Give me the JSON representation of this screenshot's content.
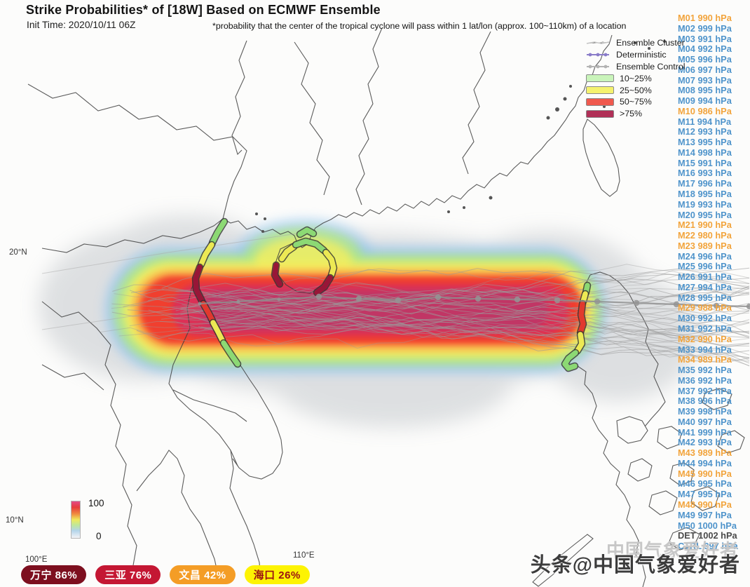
{
  "title": "Strike Probabilities* of [18W] Based on ECMWF Ensemble",
  "init_time": "Init Time: 2020/10/11 06Z",
  "annotation": "*probability that the center of the tropical cyclone will pass within 1 lat/lon (approx. 100~110km) of a location",
  "legend": {
    "track_entries": [
      {
        "label": "Ensemble Cluster",
        "color": "#c2c2c2",
        "marker": "line"
      },
      {
        "label": "Deterministic",
        "color": "#8a7cc9",
        "marker": "dots"
      },
      {
        "label": "Ensemble Control",
        "color": "#b3b3b3",
        "marker": "dots"
      }
    ],
    "probability_bins": [
      {
        "label": "10~25%",
        "color": "#c9f4ba"
      },
      {
        "label": "25~50%",
        "color": "#f5f26e"
      },
      {
        "label": "50~75%",
        "color": "#f0594e"
      },
      {
        "label": ">75%",
        "color": "#b03057"
      }
    ]
  },
  "colorbar": {
    "top_label": "100",
    "bottom_label": "0"
  },
  "axis": {
    "lat": [
      {
        "label": "20°N"
      },
      {
        "label": "10°N"
      }
    ],
    "lon": [
      {
        "label": "100°E"
      },
      {
        "label": "110°E"
      }
    ]
  },
  "member_unit": "hPa",
  "colors": {
    "member_cool": "#4f94cb",
    "member_warm": "#f2a43c",
    "member_det": "#4a4a4a",
    "band_green": "#8ede76",
    "band_yellow": "#f2ee55",
    "band_red": "#e6392d",
    "band_maroon": "#9b1638"
  },
  "members": [
    {
      "id": "M01",
      "pressure": 990
    },
    {
      "id": "M02",
      "pressure": 999
    },
    {
      "id": "M03",
      "pressure": 991
    },
    {
      "id": "M04",
      "pressure": 992
    },
    {
      "id": "M05",
      "pressure": 996
    },
    {
      "id": "M06",
      "pressure": 997
    },
    {
      "id": "M07",
      "pressure": 993
    },
    {
      "id": "M08",
      "pressure": 995
    },
    {
      "id": "M09",
      "pressure": 994
    },
    {
      "id": "M10",
      "pressure": 986
    },
    {
      "id": "M11",
      "pressure": 994
    },
    {
      "id": "M12",
      "pressure": 993
    },
    {
      "id": "M13",
      "pressure": 995
    },
    {
      "id": "M14",
      "pressure": 998
    },
    {
      "id": "M15",
      "pressure": 991
    },
    {
      "id": "M16",
      "pressure": 993
    },
    {
      "id": "M17",
      "pressure": 996
    },
    {
      "id": "M18",
      "pressure": 995
    },
    {
      "id": "M19",
      "pressure": 993
    },
    {
      "id": "M20",
      "pressure": 995
    },
    {
      "id": "M21",
      "pressure": 990
    },
    {
      "id": "M22",
      "pressure": 980
    },
    {
      "id": "M23",
      "pressure": 989
    },
    {
      "id": "M24",
      "pressure": 996
    },
    {
      "id": "M25",
      "pressure": 996
    },
    {
      "id": "M26",
      "pressure": 991
    },
    {
      "id": "M27",
      "pressure": 994
    },
    {
      "id": "M28",
      "pressure": 995
    },
    {
      "id": "M29",
      "pressure": 988
    },
    {
      "id": "M30",
      "pressure": 992
    },
    {
      "id": "M31",
      "pressure": 992
    },
    {
      "id": "M32",
      "pressure": 990
    },
    {
      "id": "M33",
      "pressure": 994
    },
    {
      "id": "M34",
      "pressure": 989
    },
    {
      "id": "M35",
      "pressure": 992
    },
    {
      "id": "M36",
      "pressure": 992
    },
    {
      "id": "M37",
      "pressure": 992
    },
    {
      "id": "M38",
      "pressure": 996
    },
    {
      "id": "M39",
      "pressure": 998
    },
    {
      "id": "M40",
      "pressure": 997
    },
    {
      "id": "M41",
      "pressure": 999
    },
    {
      "id": "M42",
      "pressure": 993
    },
    {
      "id": "M43",
      "pressure": 989
    },
    {
      "id": "M44",
      "pressure": 994
    },
    {
      "id": "M45",
      "pressure": 990
    },
    {
      "id": "M46",
      "pressure": 995
    },
    {
      "id": "M47",
      "pressure": 995
    },
    {
      "id": "M48",
      "pressure": 990
    },
    {
      "id": "M49",
      "pressure": 997
    },
    {
      "id": "M50",
      "pressure": 1000
    },
    {
      "id": "DET",
      "pressure": 1002
    },
    {
      "id": "CTRL",
      "pressure": 997
    }
  ],
  "badges": [
    {
      "city": "万宁",
      "value": "86%",
      "bg": "#7d0f1f",
      "fg": "#ffffff"
    },
    {
      "city": "三亚",
      "value": "76%",
      "bg": "#c41733",
      "fg": "#ffffff"
    },
    {
      "city": "文昌",
      "value": "42%",
      "bg": "#f49d26",
      "fg": "#ffffff"
    },
    {
      "city": "海口",
      "value": "26%",
      "bg": "#fdf303",
      "fg": "#9b1313"
    }
  ],
  "watermark": {
    "main": "头条@中国气象爱好者",
    "ghost": "中国气象爱好者"
  }
}
